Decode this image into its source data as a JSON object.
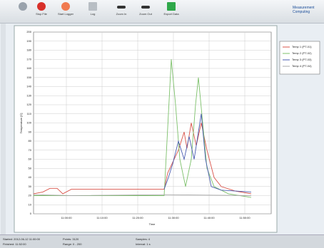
{
  "toolbar": [
    "Stop File",
    "Start Logger",
    "Log",
    "Zoom In",
    "Zoom Out",
    "Export Data"
  ],
  "logo": "Measurement Computing",
  "status": [
    "Started: 2012-06-12 11:00:00",
    "Finished: 11:52:00",
    "Points: 3120",
    "Range: 0 - 200",
    "Samples: 4",
    "Interval: 1 s"
  ],
  "chart_data": {
    "type": "line",
    "y_label": "Temperature [C]",
    "x_label": "Time",
    "xlim": [
      -9.2,
      57.4
    ],
    "ylim": [
      0,
      200
    ],
    "xticks": [
      {
        "value": 0,
        "label": "11:00:00"
      },
      {
        "value": 10,
        "label": "11:10:00"
      },
      {
        "value": 20,
        "label": "11:20:00"
      },
      {
        "value": 30,
        "label": "11:30:00"
      },
      {
        "value": 40,
        "label": "11:40:00"
      },
      {
        "value": 50,
        "label": "11:50:00"
      }
    ],
    "yticks": [
      0,
      10,
      20,
      30,
      40,
      50,
      60,
      70,
      80,
      90,
      100,
      110,
      120,
      130,
      140,
      150,
      160,
      170,
      180,
      190,
      200
    ],
    "grid": true,
    "series": [
      {
        "name": "Temp 1 (PT-01)",
        "color": "#d9534a",
        "x": [
          -9.2,
          -6.6,
          -4.6,
          -2.6,
          -1,
          1.4,
          11.4,
          27.4,
          28.4,
          31.4,
          33,
          33.8,
          35,
          36.4,
          37.8,
          39.4,
          41.4,
          43.4,
          47.4,
          51.8
        ],
        "values": [
          22,
          24,
          28,
          28,
          22,
          27,
          27,
          27,
          45,
          70,
          90,
          72,
          100,
          75,
          100,
          70,
          40,
          30,
          25,
          22
        ]
      },
      {
        "name": "Temp 2 (PT-02)",
        "color": "#7cc06a",
        "x": [
          -9.2,
          27.4,
          28.4,
          29.4,
          30.6,
          31.8,
          33.4,
          35,
          36.2,
          37,
          38.2,
          39.4,
          41.4,
          45.4,
          51.8
        ],
        "values": [
          20,
          20,
          95,
          170,
          120,
          60,
          30,
          60,
          120,
          150,
          100,
          50,
          30,
          22,
          18
        ]
      },
      {
        "name": "Temp 3 (PT-03)",
        "color": "#4a5cb0",
        "x": [
          27.4,
          28.6,
          29.8,
          31.4,
          33,
          34.4,
          35.8,
          37,
          37.8,
          39,
          40.6,
          43.4,
          51.8
        ],
        "values": [
          27,
          40,
          55,
          80,
          60,
          85,
          60,
          90,
          110,
          60,
          30,
          26,
          24
        ]
      },
      {
        "name": "Temp 4 (PT-04)",
        "color": "#a8a8a8",
        "x": [
          -9.2,
          1.4,
          27.4,
          51.8
        ],
        "values": [
          21,
          20,
          21,
          20
        ]
      }
    ]
  }
}
